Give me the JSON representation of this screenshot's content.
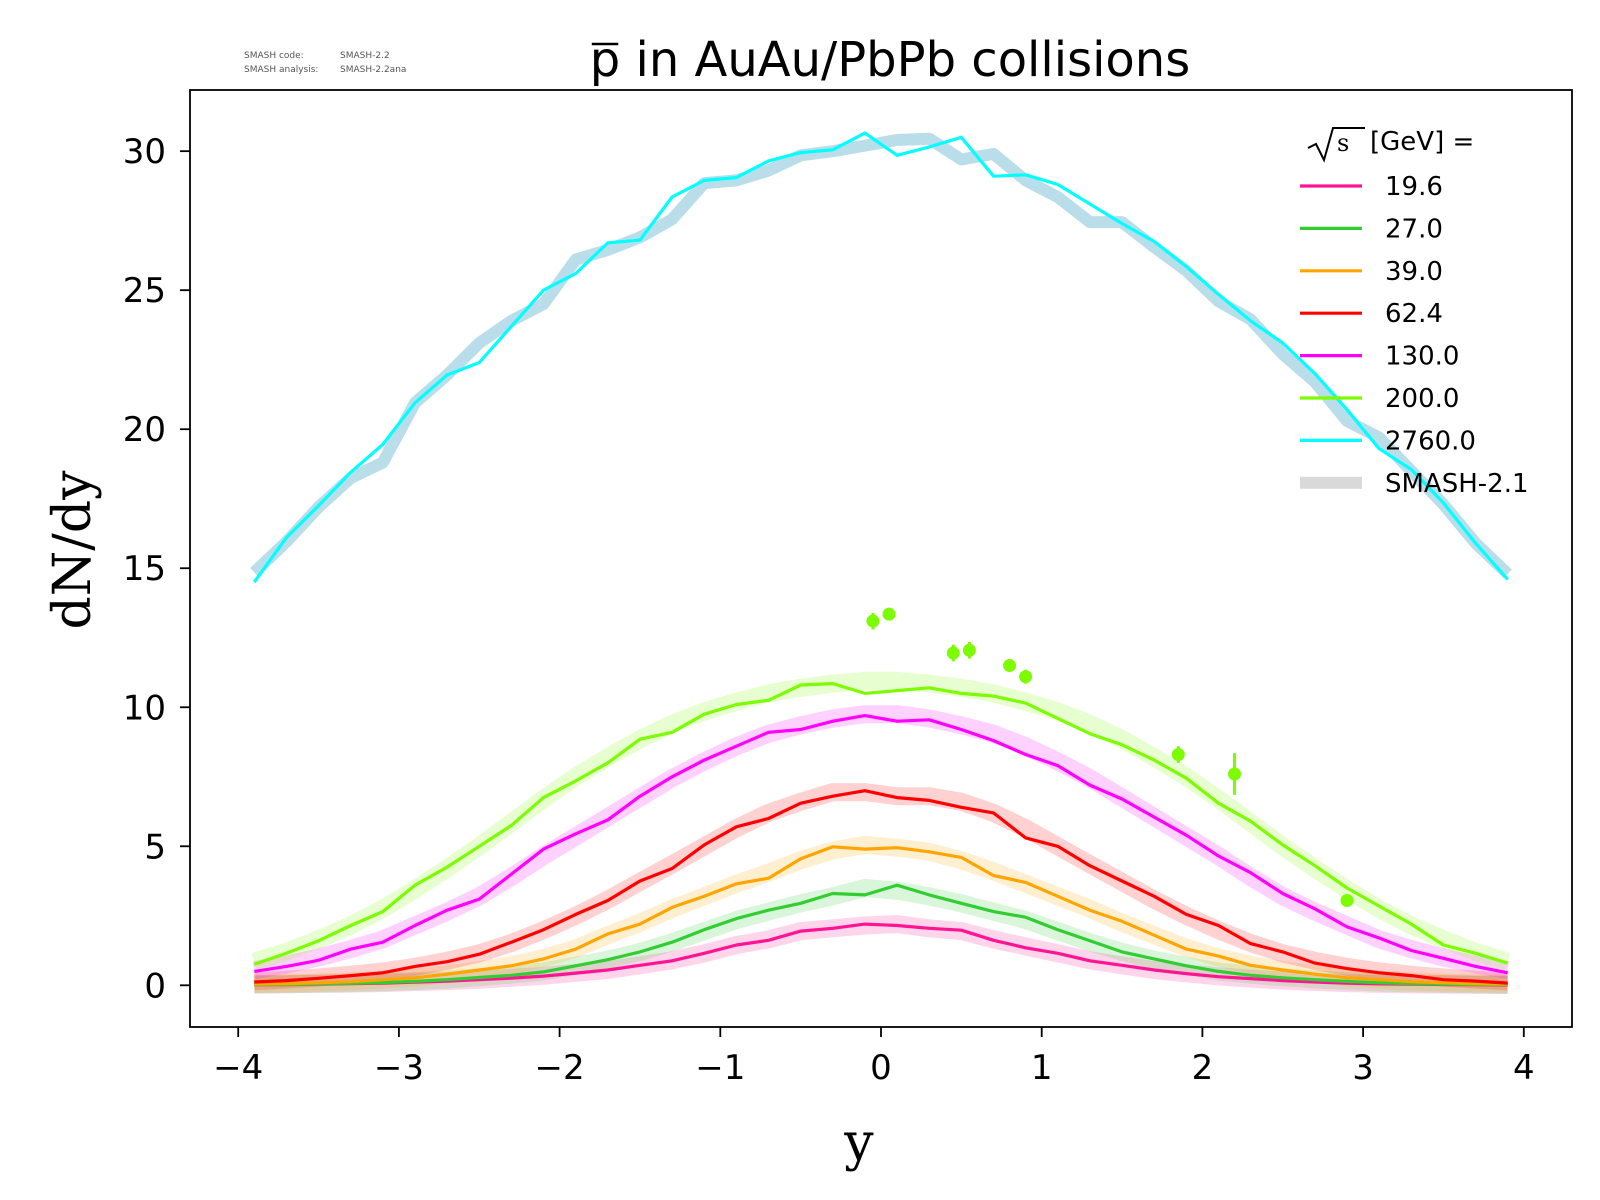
{
  "version": {
    "code_label": "SMASH code:",
    "code_value": "SMASH-2.2",
    "analysis_label": "SMASH analysis:",
    "analysis_value": "SMASH-2.2ana"
  },
  "chart_data": {
    "type": "line",
    "title_part": "p",
    "title_rest": " in AuAu/PbPb collisions",
    "xlabel": "y",
    "ylabel": "dN/dy",
    "xlim": [
      -4.3,
      4.3
    ],
    "ylim": [
      -1.5,
      32.2
    ],
    "xticks": [
      -4,
      -3,
      -2,
      -1,
      0,
      1,
      2,
      3,
      4
    ],
    "xtick_labels": [
      "−4",
      "−3",
      "−2",
      "−1",
      "0",
      "1",
      "2",
      "3",
      "4"
    ],
    "yticks": [
      0,
      5,
      10,
      15,
      20,
      25,
      30
    ],
    "ytick_labels": [
      "0",
      "5",
      "10",
      "15",
      "20",
      "25",
      "30"
    ],
    "legend_title_unit": "s",
    "legend_title_rest": " [GeV] =",
    "legend_position": "top-right",
    "x": [
      -3.9,
      -3.7,
      -3.5,
      -3.3,
      -3.1,
      -2.9,
      -2.7,
      -2.5,
      -2.3,
      -2.1,
      -1.9,
      -1.7,
      -1.5,
      -1.3,
      -1.1,
      -0.9,
      -0.7,
      -0.5,
      -0.3,
      -0.1,
      0.1,
      0.3,
      0.5,
      0.7,
      0.9,
      1.1,
      1.3,
      1.5,
      1.7,
      1.9,
      2.1,
      2.3,
      2.5,
      2.7,
      2.9,
      3.1,
      3.3,
      3.5,
      3.7,
      3.9
    ],
    "series": [
      {
        "name": "19.6",
        "color": "#ff1493",
        "values": [
          0.02,
          0.03,
          0.04,
          0.06,
          0.08,
          0.11,
          0.15,
          0.2,
          0.26,
          0.33,
          0.44,
          0.55,
          0.72,
          0.88,
          1.15,
          1.45,
          1.62,
          1.95,
          2.05,
          2.2,
          2.15,
          2.05,
          1.98,
          1.62,
          1.35,
          1.15,
          0.88,
          0.72,
          0.55,
          0.42,
          0.31,
          0.24,
          0.17,
          0.12,
          0.08,
          0.05,
          0.04,
          0.03,
          0.02,
          0.01
        ],
        "band": [
          0.03,
          0.04,
          0.05,
          0.06,
          0.08,
          0.12,
          0.15,
          0.2,
          0.27,
          0.34,
          0.45,
          0.55,
          0.72,
          0.9,
          1.15,
          1.45,
          1.65,
          1.95,
          2.05,
          2.15,
          2.2,
          2.05,
          1.95,
          1.65,
          1.4,
          1.15,
          0.9,
          0.72,
          0.55,
          0.43,
          0.32,
          0.24,
          0.17,
          0.12,
          0.08,
          0.05,
          0.04,
          0.03,
          0.02,
          0.01
        ]
      },
      {
        "name": "27.0",
        "color": "#32cd32",
        "values": [
          0.02,
          0.03,
          0.05,
          0.07,
          0.1,
          0.14,
          0.2,
          0.28,
          0.36,
          0.48,
          0.7,
          0.92,
          1.2,
          1.55,
          2.0,
          2.4,
          2.7,
          2.95,
          3.3,
          3.25,
          3.6,
          3.25,
          2.95,
          2.65,
          2.45,
          2.0,
          1.6,
          1.2,
          0.95,
          0.7,
          0.5,
          0.36,
          0.27,
          0.2,
          0.14,
          0.09,
          0.06,
          0.04,
          0.03,
          0.02
        ],
        "band": [
          0.03,
          0.04,
          0.06,
          0.08,
          0.11,
          0.15,
          0.21,
          0.29,
          0.38,
          0.5,
          0.7,
          0.92,
          1.2,
          1.55,
          1.95,
          2.35,
          2.65,
          2.95,
          3.2,
          3.5,
          3.4,
          3.2,
          2.95,
          2.65,
          2.35,
          1.95,
          1.55,
          1.2,
          0.92,
          0.7,
          0.5,
          0.38,
          0.29,
          0.21,
          0.15,
          0.1,
          0.07,
          0.05,
          0.03,
          0.02
        ]
      },
      {
        "name": "39.0",
        "color": "#ffa500",
        "values": [
          0.04,
          0.06,
          0.09,
          0.13,
          0.2,
          0.27,
          0.4,
          0.55,
          0.7,
          0.95,
          1.3,
          1.85,
          2.2,
          2.8,
          3.2,
          3.65,
          3.85,
          4.55,
          4.98,
          4.9,
          4.95,
          4.8,
          4.6,
          3.95,
          3.7,
          3.2,
          2.7,
          2.3,
          1.8,
          1.3,
          1.05,
          0.72,
          0.55,
          0.4,
          0.27,
          0.2,
          0.13,
          0.09,
          0.06,
          0.04
        ],
        "band": [
          0.05,
          0.07,
          0.1,
          0.14,
          0.2,
          0.28,
          0.4,
          0.55,
          0.72,
          0.98,
          1.32,
          1.8,
          2.25,
          2.75,
          3.2,
          3.65,
          4.05,
          4.5,
          4.85,
          5.05,
          4.95,
          4.8,
          4.5,
          4.1,
          3.65,
          3.2,
          2.75,
          2.25,
          1.8,
          1.35,
          1.0,
          0.74,
          0.55,
          0.4,
          0.28,
          0.2,
          0.14,
          0.1,
          0.07,
          0.05
        ]
      },
      {
        "name": "62.4",
        "color": "#ff0000",
        "values": [
          0.12,
          0.17,
          0.25,
          0.35,
          0.45,
          0.68,
          0.85,
          1.12,
          1.55,
          2.0,
          2.55,
          3.05,
          3.75,
          4.2,
          5.05,
          5.7,
          6.0,
          6.55,
          6.8,
          7.0,
          6.75,
          6.65,
          6.4,
          6.2,
          5.3,
          5.0,
          4.3,
          3.75,
          3.2,
          2.55,
          2.15,
          1.5,
          1.2,
          0.8,
          0.6,
          0.45,
          0.35,
          0.2,
          0.15,
          0.08
        ],
        "band": [
          0.14,
          0.2,
          0.28,
          0.38,
          0.5,
          0.66,
          0.88,
          1.15,
          1.52,
          1.98,
          2.5,
          3.08,
          3.72,
          4.35,
          5.0,
          5.65,
          6.2,
          6.6,
          6.95,
          6.95,
          6.8,
          6.8,
          6.6,
          6.2,
          5.65,
          5.0,
          4.35,
          3.72,
          3.08,
          2.5,
          1.98,
          1.52,
          1.15,
          0.88,
          0.66,
          0.5,
          0.38,
          0.28,
          0.2,
          0.14
        ]
      },
      {
        "name": "130.0",
        "color": "#ff00ff",
        "values": [
          0.5,
          0.68,
          0.9,
          1.3,
          1.55,
          2.15,
          2.7,
          3.1,
          4.0,
          4.9,
          5.45,
          5.95,
          6.8,
          7.5,
          8.1,
          8.6,
          9.1,
          9.2,
          9.5,
          9.7,
          9.5,
          9.55,
          9.2,
          8.8,
          8.3,
          7.9,
          7.2,
          6.7,
          6.05,
          5.4,
          4.65,
          4.05,
          3.3,
          2.75,
          2.1,
          1.7,
          1.25,
          0.97,
          0.68,
          0.45
        ],
        "band": [
          0.55,
          0.75,
          1.0,
          1.3,
          1.65,
          2.15,
          2.65,
          3.2,
          3.9,
          4.65,
          5.35,
          6.05,
          6.75,
          7.45,
          8.05,
          8.6,
          9.05,
          9.35,
          9.6,
          9.75,
          9.75,
          9.6,
          9.35,
          9.05,
          8.6,
          8.05,
          7.45,
          6.75,
          6.05,
          5.35,
          4.65,
          3.9,
          3.2,
          2.65,
          2.15,
          1.65,
          1.3,
          1.0,
          0.75,
          0.55
        ]
      },
      {
        "name": "200.0",
        "color": "#7cfc00",
        "values": [
          0.75,
          1.15,
          1.6,
          2.15,
          2.65,
          3.6,
          4.25,
          5.0,
          5.75,
          6.75,
          7.35,
          8.0,
          8.85,
          9.1,
          9.75,
          10.1,
          10.25,
          10.8,
          10.85,
          10.5,
          10.6,
          10.7,
          10.5,
          10.4,
          10.15,
          9.6,
          9.05,
          8.65,
          8.1,
          7.45,
          6.55,
          5.9,
          5.05,
          4.3,
          3.5,
          2.85,
          2.2,
          1.45,
          1.15,
          0.8
        ],
        "band": [
          0.85,
          1.2,
          1.65,
          2.15,
          2.75,
          3.45,
          4.2,
          5.0,
          5.85,
          6.7,
          7.5,
          8.2,
          8.85,
          9.4,
          9.85,
          10.2,
          10.5,
          10.7,
          10.85,
          10.95,
          10.95,
          10.85,
          10.7,
          10.5,
          10.2,
          9.85,
          9.4,
          8.85,
          8.2,
          7.5,
          6.7,
          5.85,
          5.0,
          4.2,
          3.45,
          2.75,
          2.15,
          1.65,
          1.2,
          0.85
        ]
      },
      {
        "name": "2760.0",
        "color": "#00ffff",
        "values": [
          14.5,
          16.1,
          17.25,
          18.45,
          19.45,
          20.95,
          21.95,
          22.4,
          23.7,
          25.0,
          25.6,
          26.7,
          26.8,
          28.35,
          28.95,
          29.05,
          29.65,
          29.95,
          30.05,
          30.65,
          29.85,
          30.15,
          30.5,
          29.1,
          29.15,
          28.8,
          28.1,
          27.4,
          26.75,
          25.85,
          24.85,
          23.9,
          23.1,
          22.0,
          20.7,
          19.3,
          18.55,
          17.35,
          15.9,
          14.6
        ],
        "band": [
          14.85,
          15.95,
          17.2,
          18.25,
          18.8,
          20.95,
          21.95,
          23.1,
          23.9,
          24.5,
          26.1,
          26.45,
          26.9,
          27.55,
          28.85,
          28.95,
          29.3,
          29.85,
          30.0,
          30.2,
          30.4,
          30.45,
          29.7,
          29.9,
          28.95,
          28.35,
          27.45,
          27.45,
          26.55,
          25.7,
          24.6,
          23.95,
          22.7,
          21.7,
          20.3,
          19.7,
          18.5,
          17.3,
          15.9,
          14.8
        ]
      }
    ],
    "model_legend": {
      "name": "SMASH-2.1",
      "color": "#d9d9d9"
    },
    "experimental_points": {
      "color": "#7cfc00",
      "points": [
        {
          "x": -0.05,
          "y": 13.1,
          "err": 0.3
        },
        {
          "x": 0.05,
          "y": 13.35,
          "err": 0.15
        },
        {
          "x": 0.45,
          "y": 11.95,
          "err": 0.3
        },
        {
          "x": 0.55,
          "y": 12.05,
          "err": 0.3
        },
        {
          "x": 0.8,
          "y": 11.5,
          "err": 0.15
        },
        {
          "x": 0.9,
          "y": 11.1,
          "err": 0.25
        },
        {
          "x": 1.85,
          "y": 8.3,
          "err": 0.3
        },
        {
          "x": 2.2,
          "y": 7.6,
          "err": 0.75
        },
        {
          "x": 2.9,
          "y": 3.05,
          "err": 0.1
        }
      ]
    }
  }
}
